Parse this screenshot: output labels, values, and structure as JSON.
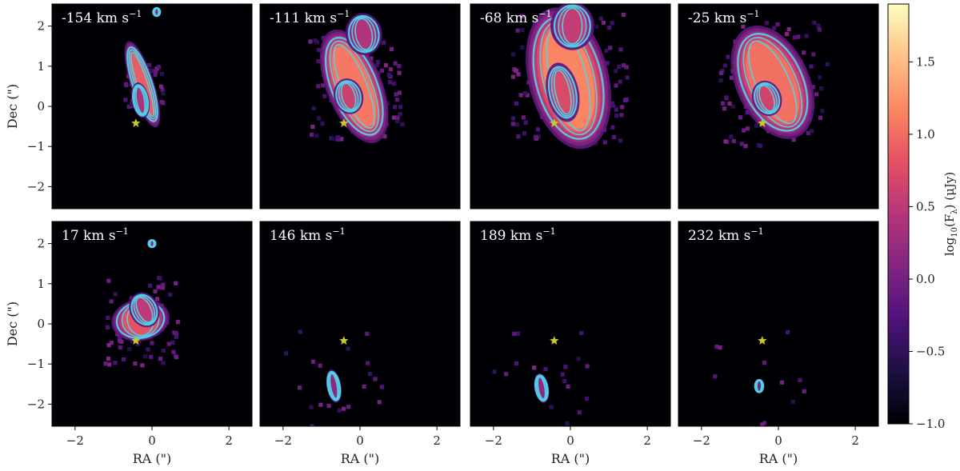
{
  "chart_data": {
    "type": "heatmap",
    "layout": {
      "rows": 2,
      "cols": 4,
      "shared_x": true,
      "shared_y": true
    },
    "xlabel": "RA (\")",
    "ylabel": "Dec (\")",
    "xticks": [
      -2,
      0,
      2
    ],
    "yticks": [
      -2,
      -1,
      0,
      1,
      2
    ],
    "xlim": [
      -2.6,
      2.6
    ],
    "ylim": [
      -2.55,
      2.55
    ],
    "grid": false,
    "star": {
      "x": -0.42,
      "y": -0.42,
      "color": "#c9c72a"
    },
    "contour_color": "#4fd5e8",
    "colorbar": {
      "label": "log10(Fλ) (μJy)",
      "label_parts": {
        "main": "log",
        "sub": "10",
        "paren": "(F",
        "sub2": "λ",
        "unit": ") (μJy)"
      },
      "min": -1.0,
      "max": 1.9,
      "ticks": [
        -1.0,
        -0.5,
        0.0,
        0.5,
        1.0,
        1.5
      ],
      "tick_labels": [
        "−1.0",
        "−0.5",
        "0.0",
        "0.5",
        "1.0",
        "1.5"
      ],
      "colormap": "magma",
      "stops": [
        "#000004",
        "#1c1044",
        "#4f127b",
        "#812581",
        "#b5367a",
        "#e55064",
        "#fb8761",
        "#fec287",
        "#fcfdbf"
      ]
    },
    "panels": [
      {
        "velocity": "-154",
        "unit": "km s",
        "exp": "−1",
        "row": 0,
        "col": 0,
        "blobs": [
          {
            "x": -0.25,
            "y": 0.55,
            "sx": 0.16,
            "sy": 0.75,
            "rot": -18,
            "peak": 1.1
          },
          {
            "x": -0.3,
            "y": 0.15,
            "sx": 0.12,
            "sy": 0.3,
            "rot": -10,
            "peak": 0.5
          },
          {
            "x": 0.12,
            "y": 2.35,
            "sx": 0.06,
            "sy": 0.08,
            "rot": 0,
            "peak": 0.3
          }
        ],
        "spread": 0.5,
        "scatter_count": 40
      },
      {
        "velocity": "-111",
        "unit": "km s",
        "exp": "−1",
        "row": 0,
        "col": 1,
        "blobs": [
          {
            "x": -0.15,
            "y": 0.5,
            "sx": 0.38,
            "sy": 1.0,
            "rot": -22,
            "peak": 1.3
          },
          {
            "x": -0.3,
            "y": 0.25,
            "sx": 0.2,
            "sy": 0.3,
            "rot": -15,
            "peak": 0.75
          },
          {
            "x": 0.1,
            "y": 1.8,
            "sx": 0.25,
            "sy": 0.35,
            "rot": -10,
            "peak": 0.55
          }
        ],
        "spread": 1.2,
        "scatter_count": 90
      },
      {
        "velocity": "-68",
        "unit": "km s",
        "exp": "−1",
        "row": 0,
        "col": 2,
        "blobs": [
          {
            "x": -0.05,
            "y": 0.7,
            "sx": 0.55,
            "sy": 1.2,
            "rot": -14,
            "peak": 1.4
          },
          {
            "x": -0.2,
            "y": 0.35,
            "sx": 0.22,
            "sy": 0.5,
            "rot": -12,
            "peak": 0.9
          },
          {
            "x": 0.05,
            "y": 2.0,
            "sx": 0.3,
            "sy": 0.4,
            "rot": 0,
            "peak": 0.7
          }
        ],
        "spread": 1.5,
        "scatter_count": 120
      },
      {
        "velocity": "-25",
        "unit": "km s",
        "exp": "−1",
        "row": 0,
        "col": 3,
        "blobs": [
          {
            "x": -0.15,
            "y": 0.6,
            "sx": 0.5,
            "sy": 1.0,
            "rot": -25,
            "peak": 1.25
          },
          {
            "x": -0.3,
            "y": 0.2,
            "sx": 0.2,
            "sy": 0.3,
            "rot": -20,
            "peak": 0.8
          }
        ],
        "spread": 1.4,
        "scatter_count": 110
      },
      {
        "velocity": "17",
        "unit": "km s",
        "exp": "−1",
        "row": 1,
        "col": 0,
        "blobs": [
          {
            "x": -0.3,
            "y": 0.1,
            "sx": 0.4,
            "sy": 0.35,
            "rot": -10,
            "peak": 1.0
          },
          {
            "x": -0.2,
            "y": 0.35,
            "sx": 0.2,
            "sy": 0.3,
            "rot": -25,
            "peak": 0.65
          },
          {
            "x": 0.0,
            "y": 2.0,
            "sx": 0.06,
            "sy": 0.07,
            "rot": 0,
            "peak": 0.3
          }
        ],
        "spread": 1.0,
        "scatter_count": 70
      },
      {
        "velocity": "146",
        "unit": "km s",
        "exp": "−1",
        "row": 1,
        "col": 1,
        "blobs": [
          {
            "x": -0.68,
            "y": -1.55,
            "sx": 0.1,
            "sy": 0.28,
            "rot": -10,
            "peak": 0.25
          }
        ],
        "spread": 1.3,
        "scatter_count": 25
      },
      {
        "velocity": "189",
        "unit": "km s",
        "exp": "−1",
        "row": 1,
        "col": 2,
        "blobs": [
          {
            "x": -0.75,
            "y": -1.6,
            "sx": 0.1,
            "sy": 0.25,
            "rot": -10,
            "peak": 0.25
          }
        ],
        "spread": 1.3,
        "scatter_count": 22
      },
      {
        "velocity": "232",
        "unit": "km s",
        "exp": "−1",
        "row": 1,
        "col": 3,
        "blobs": [
          {
            "x": -0.5,
            "y": -1.55,
            "sx": 0.07,
            "sy": 0.12,
            "rot": 0,
            "peak": 0.1
          }
        ],
        "spread": 1.3,
        "scatter_count": 12
      }
    ]
  }
}
